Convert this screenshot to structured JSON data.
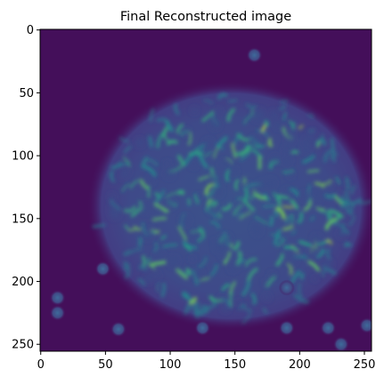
{
  "figure": {
    "title": "Final Reconstructed image",
    "image_size": [
      256,
      256
    ],
    "colormap": "viridis",
    "background_color": "#440f5a"
  },
  "axes": {
    "x": {
      "range": [
        -0.5,
        255.5
      ],
      "ticks": [
        0,
        50,
        100,
        150,
        200,
        250
      ],
      "tick_labels": [
        "0",
        "50",
        "100",
        "150",
        "200",
        "250"
      ]
    },
    "y": {
      "range": [
        -0.5,
        255.5
      ],
      "inverted": true,
      "ticks": [
        0,
        50,
        100,
        150,
        200,
        250
      ],
      "tick_labels": [
        "0",
        "50",
        "100",
        "150",
        "200",
        "250"
      ]
    }
  },
  "blob": {
    "center": [
      147,
      140
    ],
    "radius_x": 103,
    "radius_y": 92
  },
  "isolated_spots": [
    [
      165,
      20
    ],
    [
      13,
      213
    ],
    [
      13,
      225
    ],
    [
      60,
      238
    ],
    [
      125,
      237
    ],
    [
      190,
      237
    ],
    [
      222,
      237
    ],
    [
      232,
      250
    ],
    [
      252,
      235
    ],
    [
      190,
      205
    ],
    [
      48,
      190
    ]
  ]
}
